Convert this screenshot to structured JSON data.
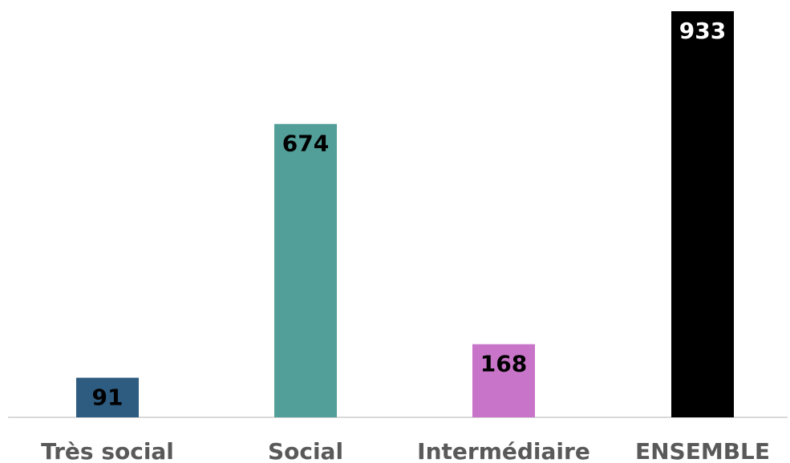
{
  "chart_data": {
    "type": "bar",
    "categories": [
      "Très social",
      "Social",
      "Intermédiaire",
      "ENSEMBLE"
    ],
    "values": [
      91,
      674,
      168,
      933
    ],
    "colors": [
      "#2e5c80",
      "#529e98",
      "#c874c8",
      "#000000"
    ],
    "label_colors": [
      "#000000",
      "#000000",
      "#000000",
      "#ffffff"
    ],
    "axis_color": "#d9d9d9",
    "title": "",
    "xlabel": "",
    "ylabel": "",
    "ylim": [
      0,
      933
    ],
    "grid": false,
    "legend": "none"
  }
}
